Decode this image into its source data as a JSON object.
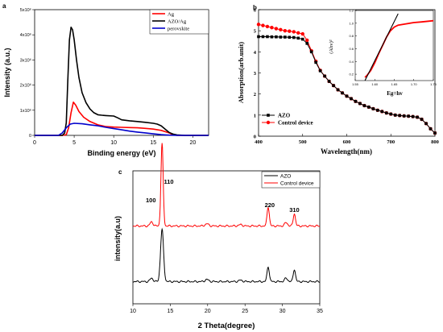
{
  "chart_data": [
    {
      "panel_label": "a",
      "type": "line",
      "xlabel": "Binding energy (eV)",
      "ylabel": "Intensity (a.u.)",
      "xlim": [
        0,
        22
      ],
      "ylim": [
        0,
        5000000.0
      ],
      "x_ticks": [
        0,
        5,
        10,
        15,
        20
      ],
      "x_tick_labels": [
        "0",
        "5",
        "10",
        "15",
        "20"
      ],
      "y_ticks": [
        0,
        1000000.0,
        2000000.0,
        3000000.0,
        4000000.0,
        5000000.0
      ],
      "y_tick_labels": [
        "0",
        "1x10⁶",
        "2x10⁶",
        "3x10⁶",
        "4x10⁶",
        "5x10⁶"
      ],
      "legend_position": "top-right",
      "series": [
        {
          "name": "Ag",
          "color": "#ff0000",
          "x": [
            0,
            3.5,
            4.0,
            4.3,
            4.6,
            4.9,
            5.2,
            5.6,
            6.2,
            7.0,
            8.0,
            9.0,
            10.0,
            11.0,
            12.0,
            13.0,
            14.0,
            15.0,
            16.0,
            17.0,
            17.5,
            18.0,
            19.0,
            22.0
          ],
          "y": [
            0,
            0,
            30000.0,
            300000.0,
            900000.0,
            1320000.0,
            1200000.0,
            950000.0,
            720000.0,
            550000.0,
            420000.0,
            350000.0,
            330000.0,
            320000.0,
            310000.0,
            300000.0,
            280000.0,
            250000.0,
            200000.0,
            100000.0,
            30000.0,
            0,
            0,
            0
          ]
        },
        {
          "name": "AZO/Ag",
          "color": "#000000",
          "x": [
            0,
            3.5,
            3.8,
            4.0,
            4.2,
            4.4,
            4.6,
            4.8,
            5.0,
            5.3,
            5.6,
            6.0,
            6.5,
            7.0,
            7.5,
            8.0,
            8.5,
            9.0,
            10.0,
            10.5,
            11.0,
            12.0,
            13.0,
            14.0,
            15.0,
            15.5,
            16.0,
            16.5,
            17.0,
            17.5,
            18.0,
            19.0,
            22.0
          ],
          "y": [
            0,
            0,
            100000.0,
            500000.0,
            2200000.0,
            3800000.0,
            4300000.0,
            4200000.0,
            3800000.0,
            3000000.0,
            2300000.0,
            1700000.0,
            1300000.0,
            1050000.0,
            900000.0,
            820000.0,
            800000.0,
            790000.0,
            770000.0,
            700000.0,
            620000.0,
            580000.0,
            550000.0,
            520000.0,
            480000.0,
            450000.0,
            380000.0,
            250000.0,
            120000.0,
            50000.0,
            20000.0,
            0,
            0
          ]
        },
        {
          "name": "perovskite",
          "color": "#0000cc",
          "x": [
            0,
            3.0,
            3.5,
            4.0,
            4.5,
            5.0,
            6.0,
            7.0,
            8.0,
            9.0,
            10.0,
            11.0,
            12.0,
            13.0,
            14.0,
            15.0,
            16.0,
            16.5,
            17.0,
            18.0,
            22.0
          ],
          "y": [
            0,
            0,
            100000.0,
            300000.0,
            450000.0,
            480000.0,
            460000.0,
            420000.0,
            380000.0,
            320000.0,
            270000.0,
            220000.0,
            170000.0,
            130000.0,
            100000.0,
            60000.0,
            30000.0,
            20000.0,
            10000.0,
            0,
            0
          ]
        }
      ]
    },
    {
      "panel_label": "b",
      "type": "line",
      "xlabel": "Wavelength(nm)",
      "ylabel": "Absorption(arb.unit)",
      "xlim": [
        400,
        800
      ],
      "ylim": [
        0,
        6
      ],
      "x_ticks": [
        400,
        500,
        600,
        700,
        800
      ],
      "x_tick_labels": [
        "400",
        "500",
        "600",
        "700",
        "800"
      ],
      "y_ticks": [
        0,
        1,
        2,
        3,
        4,
        5,
        6
      ],
      "y_tick_labels": [
        "0",
        "1",
        "2",
        "3",
        "4",
        "5",
        "6"
      ],
      "legend_position": "bottom-left",
      "series": [
        {
          "name": "AZO",
          "color": "#000000",
          "marker": "square",
          "x": [
            400,
            410,
            420,
            430,
            440,
            450,
            460,
            470,
            480,
            490,
            500,
            510,
            520,
            530,
            540,
            550,
            560,
            570,
            580,
            590,
            600,
            610,
            620,
            630,
            640,
            650,
            660,
            670,
            680,
            690,
            700,
            710,
            720,
            730,
            740,
            750,
            760,
            770,
            780,
            790,
            800
          ],
          "y": [
            4.72,
            4.72,
            4.72,
            4.71,
            4.71,
            4.7,
            4.7,
            4.69,
            4.68,
            4.65,
            4.6,
            4.4,
            4.0,
            3.5,
            3.1,
            2.85,
            2.6,
            2.4,
            2.2,
            2.05,
            1.9,
            1.78,
            1.65,
            1.55,
            1.45,
            1.38,
            1.3,
            1.23,
            1.17,
            1.1,
            1.05,
            1.0,
            0.98,
            0.96,
            0.95,
            0.93,
            0.9,
            0.8,
            0.6,
            0.35,
            0.15
          ]
        },
        {
          "name": "Control device",
          "color": "#ff0000",
          "marker": "circle",
          "x": [
            400,
            410,
            420,
            430,
            440,
            450,
            460,
            470,
            480,
            490,
            500,
            510,
            520,
            530,
            540,
            550,
            560,
            570,
            580,
            590,
            600,
            610,
            620,
            630,
            640,
            650,
            660,
            670,
            680,
            690,
            700,
            710,
            720,
            730,
            740,
            750,
            760,
            770,
            780,
            790,
            800
          ],
          "y": [
            5.3,
            5.25,
            5.2,
            5.15,
            5.1,
            5.05,
            5.0,
            4.98,
            4.95,
            4.9,
            4.85,
            4.55,
            4.05,
            3.55,
            3.12,
            2.85,
            2.6,
            2.4,
            2.2,
            2.05,
            1.9,
            1.78,
            1.65,
            1.55,
            1.45,
            1.38,
            1.3,
            1.23,
            1.17,
            1.1,
            1.05,
            1.0,
            0.98,
            0.96,
            0.95,
            0.93,
            0.9,
            0.8,
            0.6,
            0.35,
            0.15
          ]
        }
      ],
      "inset": {
        "type": "line",
        "xlabel": "Eg=hv",
        "ylabel": "(Ahv)²",
        "xlim": [
          1.55,
          1.75
        ],
        "ylim": [
          0.1,
          1.2
        ],
        "x_ticks": [
          1.55,
          1.6,
          1.65,
          1.7,
          1.75
        ],
        "x_tick_labels": [
          "1.55",
          "1.60",
          "1.65",
          "1.70",
          "1.75"
        ],
        "y_ticks": [
          0.2,
          0.4,
          0.6,
          0.8,
          1.0,
          1.2
        ],
        "y_tick_labels": [
          "0.2",
          "0.4",
          "0.6",
          "0.8",
          "1.0",
          "1.2"
        ],
        "series": [
          {
            "color": "#ff0000",
            "x": [
              1.575,
              1.58,
              1.59,
              1.6,
              1.61,
              1.62,
              1.63,
              1.64,
              1.65,
              1.66,
              1.68,
              1.7,
              1.72,
              1.75
            ],
            "y": [
              0.15,
              0.18,
              0.26,
              0.38,
              0.52,
              0.65,
              0.78,
              0.88,
              0.94,
              0.97,
              0.99,
              1.01,
              1.02,
              1.04
            ]
          },
          {
            "color": "#000000",
            "x": [
              1.575,
              1.66
            ],
            "y": [
              0.1,
              1.15
            ]
          }
        ]
      }
    },
    {
      "panel_label": "c",
      "type": "line",
      "xlabel": "2 Theta(degree)",
      "ylabel": "intensity(a.u)",
      "xlim": [
        10,
        35
      ],
      "x_ticks": [
        10,
        15,
        20,
        25,
        30,
        35
      ],
      "x_tick_labels": [
        "10",
        "15",
        "20",
        "25",
        "30",
        "35"
      ],
      "legend_position": "top-right",
      "peak_labels": [
        {
          "text": "100",
          "x": 12.4
        },
        {
          "text": "110",
          "x": 14.8
        },
        {
          "text": "220",
          "x": 28.3
        },
        {
          "text": "310",
          "x": 31.6
        }
      ],
      "series": [
        {
          "name": "AZO",
          "color": "#000000",
          "peaks": [
            [
              12.5,
              0.25,
              0.2
            ],
            [
              13.9,
              3.8,
              0.2
            ],
            [
              19.9,
              0.15,
              0.25
            ],
            [
              24.4,
              0.1,
              0.25
            ],
            [
              28.1,
              1.1,
              0.15
            ],
            [
              30.5,
              0.25,
              0.2
            ],
            [
              31.6,
              0.9,
              0.15
            ]
          ]
        },
        {
          "name": "Control device",
          "color": "#ff0000",
          "peaks": [
            [
              12.5,
              0.3,
              0.2
            ],
            [
              13.9,
              6.0,
              0.15
            ],
            [
              19.9,
              0.15,
              0.25
            ],
            [
              24.4,
              0.1,
              0.25
            ],
            [
              28.1,
              1.4,
              0.15
            ],
            [
              30.5,
              0.25,
              0.2
            ],
            [
              31.6,
              0.9,
              0.15
            ]
          ]
        }
      ]
    }
  ]
}
